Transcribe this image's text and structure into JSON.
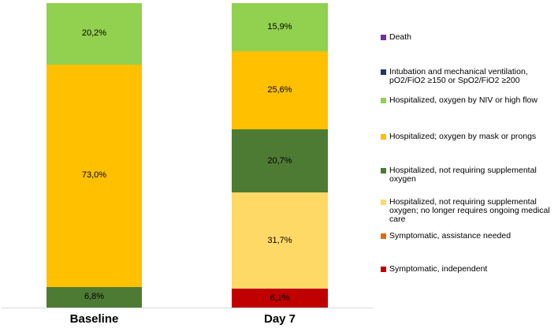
{
  "page": {
    "background": "#ffffff",
    "axis_line_color": "#d9d9d9"
  },
  "chart_data": {
    "type": "bar",
    "variant": "stacked-100-percent-column",
    "title": "",
    "xlabel": "",
    "ylabel": "",
    "ylim": [
      0,
      100
    ],
    "grid": false,
    "legend_position": "right",
    "categories": [
      "Baseline",
      "Day 7"
    ],
    "series": [
      {
        "name": "Death",
        "color": "#7030A0",
        "values": [
          0,
          0
        ],
        "labels": [
          "",
          ""
        ]
      },
      {
        "name": "Intubation and mechanical ventilation, pO2/FiO2 ≥150 or SpO2/FiO2 ≥200",
        "color": "#1F3864",
        "values": [
          0,
          0
        ],
        "labels": [
          "",
          ""
        ]
      },
      {
        "name": "Hospitalized, oxygen by NIV or high flow",
        "color": "#92D050",
        "values": [
          20.2,
          15.9
        ],
        "labels": [
          "20,2%",
          "15,9%"
        ]
      },
      {
        "name": "Hospitalized; oxygen by mask or prongs",
        "color": "#FFC000",
        "values": [
          73.0,
          25.6
        ],
        "labels": [
          "73,0%",
          "25,6%"
        ]
      },
      {
        "name": "Hospitalized, not requiring supplemental oxygen",
        "color": "#4E7B34",
        "values": [
          6.8,
          20.7
        ],
        "labels": [
          "6,8%",
          "20,7%"
        ]
      },
      {
        "name": "Hospitalized, not requiring supplemental oxygen; no longer requires ongoing medical care",
        "color": "#FFD966",
        "values": [
          0,
          31.7
        ],
        "labels": [
          "",
          "31,7%"
        ]
      },
      {
        "name": "Symptomatic, assistance needed",
        "color": "#E36C0A",
        "values": [
          0,
          0
        ],
        "labels": [
          "",
          ""
        ]
      },
      {
        "name": "Symptomatic, independent",
        "color": "#C00000",
        "values": [
          0,
          6.1
        ],
        "labels": [
          "",
          "6,1%"
        ]
      }
    ]
  }
}
